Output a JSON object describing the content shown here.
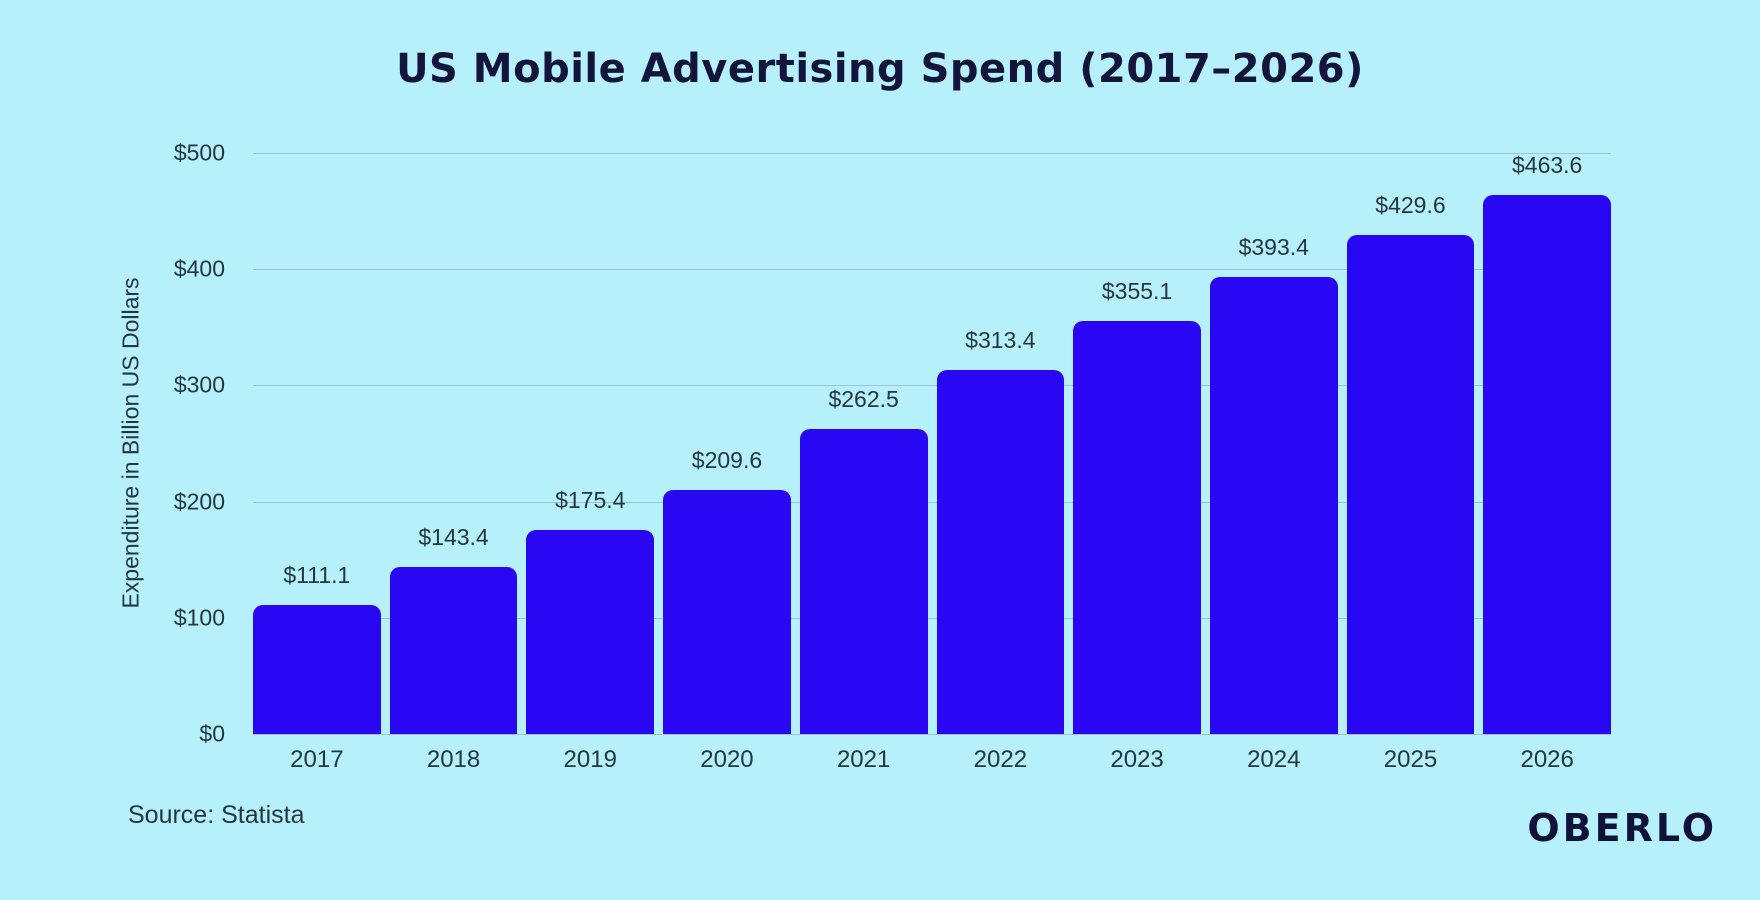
{
  "chart_data": {
    "type": "bar",
    "title": "US Mobile Advertising Spend (2017–2026)",
    "ylabel": "Expenditure in Billion US Dollars",
    "xlabel": "",
    "categories": [
      "2017",
      "2018",
      "2019",
      "2020",
      "2021",
      "2022",
      "2023",
      "2024",
      "2025",
      "2026"
    ],
    "values": [
      111.1,
      143.4,
      175.4,
      209.6,
      262.5,
      313.4,
      355.1,
      393.4,
      429.6,
      463.6
    ],
    "value_labels": [
      "$111.1",
      "$143.4",
      "$175.4",
      "$209.6",
      "$262.5",
      "$313.4",
      "$355.1",
      "$393.4",
      "$429.6",
      "$463.6"
    ],
    "ylim": [
      0,
      500
    ],
    "ytick_labels": [
      "$0",
      "$100",
      "$200",
      "$300",
      "$400",
      "$500"
    ],
    "ytick_values": [
      0,
      100,
      200,
      300,
      400,
      500
    ],
    "grid": true,
    "legend_position": "none"
  },
  "footer": {
    "source": "Source: Statista",
    "brand": "OBERLO"
  },
  "colors": {
    "background": "#b6f0fb",
    "bar": "#2a07f2",
    "gridline": "#a3c2cd",
    "title_text": "#14153c",
    "axis_text": "#243741",
    "logo_text": "#10123a"
  }
}
